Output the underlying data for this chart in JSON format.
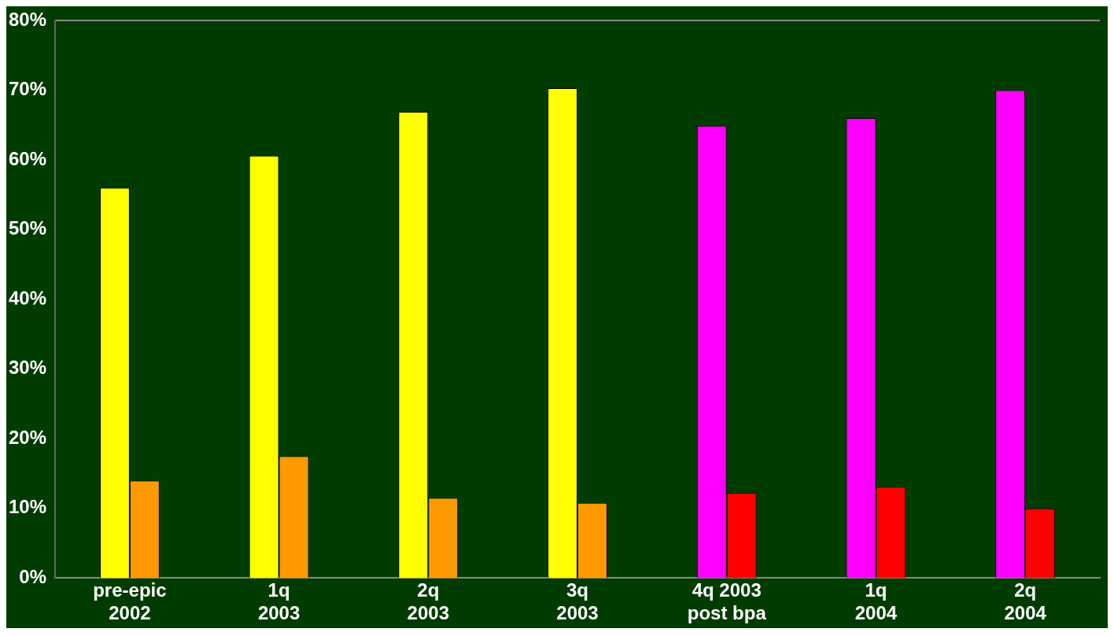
{
  "chart_data": {
    "type": "bar",
    "categories": [
      "pre-epic\n2002",
      "1q\n2003",
      "2q\n2003",
      "3q\n2003",
      "4q 2003\npost bpa",
      "1q\n2004",
      "2q\n2004"
    ],
    "series": [
      {
        "colors": [
          "#ffff00",
          "#ffff00",
          "#ffff00",
          "#ffff00",
          "#ff00ff",
          "#ff00ff",
          "#ff00ff"
        ],
        "values": [
          56.0,
          60.6,
          66.9,
          70.3,
          64.9,
          66.0,
          70.0
        ]
      },
      {
        "colors": [
          "#ff9900",
          "#ff9900",
          "#ff9900",
          "#ff9900",
          "#ff0000",
          "#ff0000",
          "#ff0000"
        ],
        "values": [
          14.0,
          17.5,
          11.5,
          10.8,
          12.2,
          13.1,
          10.0
        ]
      }
    ],
    "ylim": [
      0,
      80
    ],
    "yticks": [
      {
        "value": 0,
        "label": "0%"
      },
      {
        "value": 10,
        "label": "10%"
      },
      {
        "value": 20,
        "label": "20%"
      },
      {
        "value": 30,
        "label": "30%"
      },
      {
        "value": 40,
        "label": "40%"
      },
      {
        "value": 50,
        "label": "50%"
      },
      {
        "value": 60,
        "label": "60%"
      },
      {
        "value": 70,
        "label": "70%"
      },
      {
        "value": 80,
        "label": "80%"
      }
    ],
    "grid": false,
    "legend": false
  }
}
